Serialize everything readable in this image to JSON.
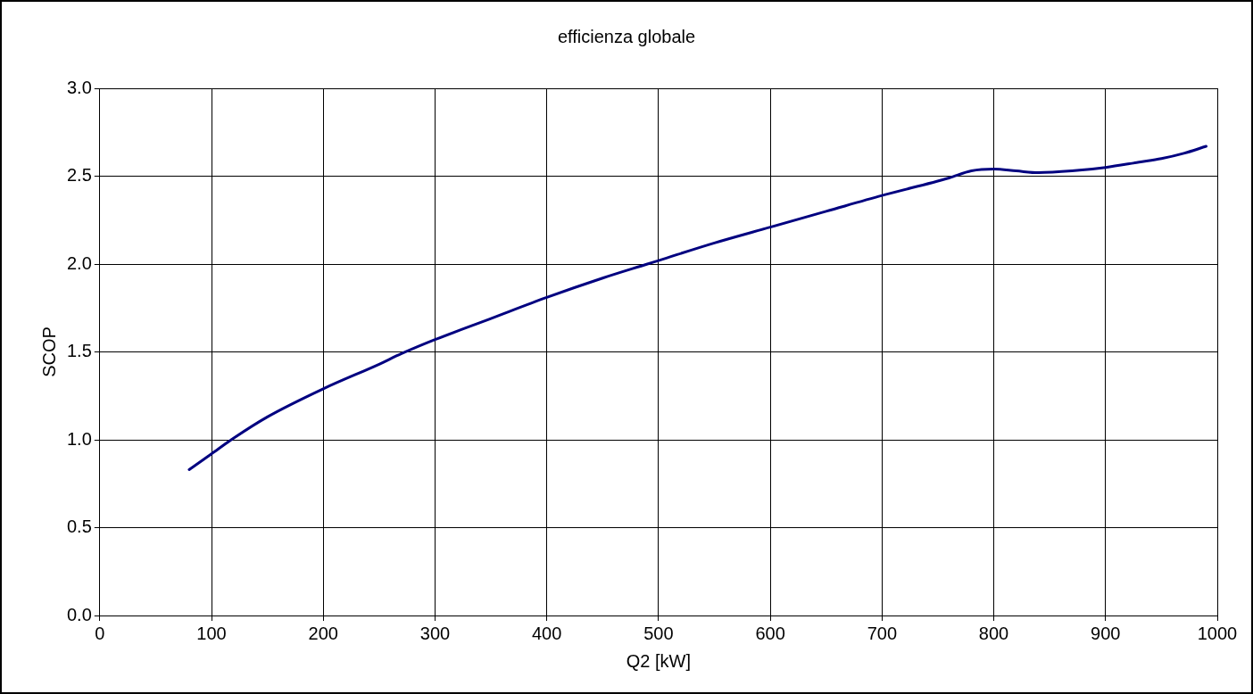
{
  "chart_data": {
    "type": "line",
    "title": "efficienza globale",
    "xlabel": "Q2 [kW]",
    "ylabel": "SCOP",
    "x": [
      80,
      100,
      120,
      150,
      200,
      250,
      270,
      300,
      350,
      400,
      450,
      490,
      500,
      550,
      600,
      650,
      700,
      760,
      780,
      800,
      820,
      840,
      870,
      900,
      930,
      950,
      970,
      990
    ],
    "series": [
      {
        "color": "#000080",
        "values": [
          0.83,
          0.92,
          1.01,
          1.13,
          1.29,
          1.43,
          1.49,
          1.57,
          1.69,
          1.81,
          1.92,
          2.0,
          2.02,
          2.12,
          2.21,
          2.3,
          2.39,
          2.49,
          2.53,
          2.54,
          2.53,
          2.52,
          2.53,
          2.55,
          2.58,
          2.6,
          2.63,
          2.67
        ]
      }
    ],
    "xlim": [
      0,
      1000
    ],
    "xticks": [
      0,
      100,
      200,
      300,
      400,
      500,
      600,
      700,
      800,
      900,
      1000
    ],
    "ylim": [
      0,
      3
    ],
    "yticks": [
      {
        "value": 0,
        "label": "0.0"
      },
      {
        "value": 0.5,
        "label": "0.5"
      },
      {
        "value": 1,
        "label": "1.0"
      },
      {
        "value": 1.5,
        "label": "1.5"
      },
      {
        "value": 2,
        "label": "2.0"
      },
      {
        "value": 2.5,
        "label": "2.5"
      },
      {
        "value": 3,
        "label": "3.0"
      }
    ],
    "grid": true,
    "legend": false,
    "marker": "none",
    "line_style": "solid"
  }
}
